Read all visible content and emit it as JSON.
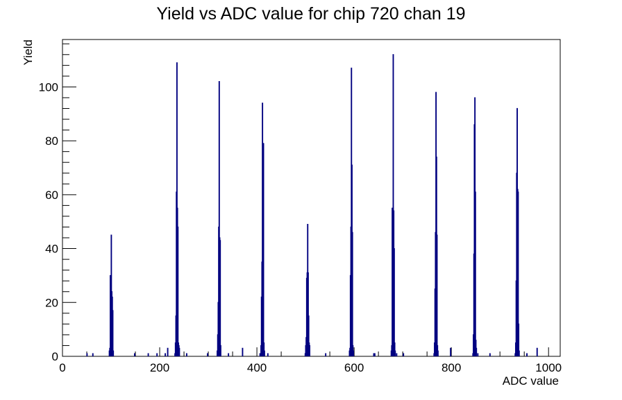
{
  "chart_data": {
    "type": "bar",
    "title": "Yield vs ADC value for chip 720 chan 19",
    "xlabel": "ADC value",
    "ylabel": "Yield",
    "xlim": [
      0,
      1024
    ],
    "ylim": [
      0,
      117.6
    ],
    "x_ticks": [
      0,
      200,
      400,
      600,
      800,
      1000
    ],
    "y_ticks": [
      0,
      20,
      40,
      60,
      80,
      100
    ],
    "line_color": "#000080",
    "bins": [
      {
        "x": 50,
        "y": 1
      },
      {
        "x": 62,
        "y": 1
      },
      {
        "x": 96,
        "y": 2
      },
      {
        "x": 97,
        "y": 3
      },
      {
        "x": 98,
        "y": 30
      },
      {
        "x": 99,
        "y": 29
      },
      {
        "x": 100,
        "y": 45
      },
      {
        "x": 101,
        "y": 24
      },
      {
        "x": 102,
        "y": 22
      },
      {
        "x": 103,
        "y": 17
      },
      {
        "x": 104,
        "y": 2
      },
      {
        "x": 148,
        "y": 1
      },
      {
        "x": 176,
        "y": 1
      },
      {
        "x": 194,
        "y": 1
      },
      {
        "x": 211,
        "y": 1
      },
      {
        "x": 216,
        "y": 3
      },
      {
        "x": 231,
        "y": 1
      },
      {
        "x": 232,
        "y": 5
      },
      {
        "x": 233,
        "y": 15
      },
      {
        "x": 234,
        "y": 61
      },
      {
        "x": 235,
        "y": 109
      },
      {
        "x": 236,
        "y": 55
      },
      {
        "x": 237,
        "y": 48
      },
      {
        "x": 238,
        "y": 5
      },
      {
        "x": 239,
        "y": 4
      },
      {
        "x": 240,
        "y": 3
      },
      {
        "x": 255,
        "y": 1
      },
      {
        "x": 298,
        "y": 1
      },
      {
        "x": 318,
        "y": 2
      },
      {
        "x": 319,
        "y": 8
      },
      {
        "x": 320,
        "y": 20
      },
      {
        "x": 321,
        "y": 48
      },
      {
        "x": 322,
        "y": 102
      },
      {
        "x": 323,
        "y": 44
      },
      {
        "x": 324,
        "y": 43
      },
      {
        "x": 325,
        "y": 4
      },
      {
        "x": 341,
        "y": 1
      },
      {
        "x": 370,
        "y": 3
      },
      {
        "x": 406,
        "y": 1
      },
      {
        "x": 407,
        "y": 1
      },
      {
        "x": 408,
        "y": 4
      },
      {
        "x": 409,
        "y": 22
      },
      {
        "x": 410,
        "y": 35
      },
      {
        "x": 411,
        "y": 94
      },
      {
        "x": 412,
        "y": 79
      },
      {
        "x": 413,
        "y": 79
      },
      {
        "x": 414,
        "y": 5
      },
      {
        "x": 415,
        "y": 2
      },
      {
        "x": 422,
        "y": 1
      },
      {
        "x": 499,
        "y": 1
      },
      {
        "x": 500,
        "y": 4
      },
      {
        "x": 501,
        "y": 7
      },
      {
        "x": 502,
        "y": 29
      },
      {
        "x": 503,
        "y": 31
      },
      {
        "x": 504,
        "y": 49
      },
      {
        "x": 505,
        "y": 31
      },
      {
        "x": 506,
        "y": 15
      },
      {
        "x": 507,
        "y": 5
      },
      {
        "x": 508,
        "y": 4
      },
      {
        "x": 541,
        "y": 1
      },
      {
        "x": 590,
        "y": 2
      },
      {
        "x": 591,
        "y": 3
      },
      {
        "x": 592,
        "y": 30
      },
      {
        "x": 593,
        "y": 48
      },
      {
        "x": 594,
        "y": 107
      },
      {
        "x": 595,
        "y": 71
      },
      {
        "x": 596,
        "y": 46
      },
      {
        "x": 597,
        "y": 4
      },
      {
        "x": 598,
        "y": 2
      },
      {
        "x": 640,
        "y": 1
      },
      {
        "x": 642,
        "y": 1
      },
      {
        "x": 676,
        "y": 2
      },
      {
        "x": 677,
        "y": 4
      },
      {
        "x": 678,
        "y": 55
      },
      {
        "x": 679,
        "y": 40
      },
      {
        "x": 680,
        "y": 112
      },
      {
        "x": 681,
        "y": 54
      },
      {
        "x": 682,
        "y": 40
      },
      {
        "x": 683,
        "y": 5
      },
      {
        "x": 684,
        "y": 2
      },
      {
        "x": 687,
        "y": 1
      },
      {
        "x": 701,
        "y": 1
      },
      {
        "x": 764,
        "y": 1
      },
      {
        "x": 765,
        "y": 5
      },
      {
        "x": 766,
        "y": 25
      },
      {
        "x": 767,
        "y": 46
      },
      {
        "x": 768,
        "y": 98
      },
      {
        "x": 769,
        "y": 74
      },
      {
        "x": 770,
        "y": 45
      },
      {
        "x": 771,
        "y": 4
      },
      {
        "x": 772,
        "y": 2
      },
      {
        "x": 798,
        "y": 3
      },
      {
        "x": 844,
        "y": 1
      },
      {
        "x": 845,
        "y": 8
      },
      {
        "x": 846,
        "y": 38
      },
      {
        "x": 847,
        "y": 86
      },
      {
        "x": 848,
        "y": 96
      },
      {
        "x": 849,
        "y": 61
      },
      {
        "x": 850,
        "y": 6
      },
      {
        "x": 851,
        "y": 3
      },
      {
        "x": 854,
        "y": 1
      },
      {
        "x": 879,
        "y": 1
      },
      {
        "x": 931,
        "y": 1
      },
      {
        "x": 932,
        "y": 5
      },
      {
        "x": 933,
        "y": 28
      },
      {
        "x": 934,
        "y": 68
      },
      {
        "x": 935,
        "y": 92
      },
      {
        "x": 936,
        "y": 62
      },
      {
        "x": 937,
        "y": 61
      },
      {
        "x": 938,
        "y": 12
      },
      {
        "x": 939,
        "y": 2
      },
      {
        "x": 955,
        "y": 1
      },
      {
        "x": 976,
        "y": 3
      }
    ]
  }
}
